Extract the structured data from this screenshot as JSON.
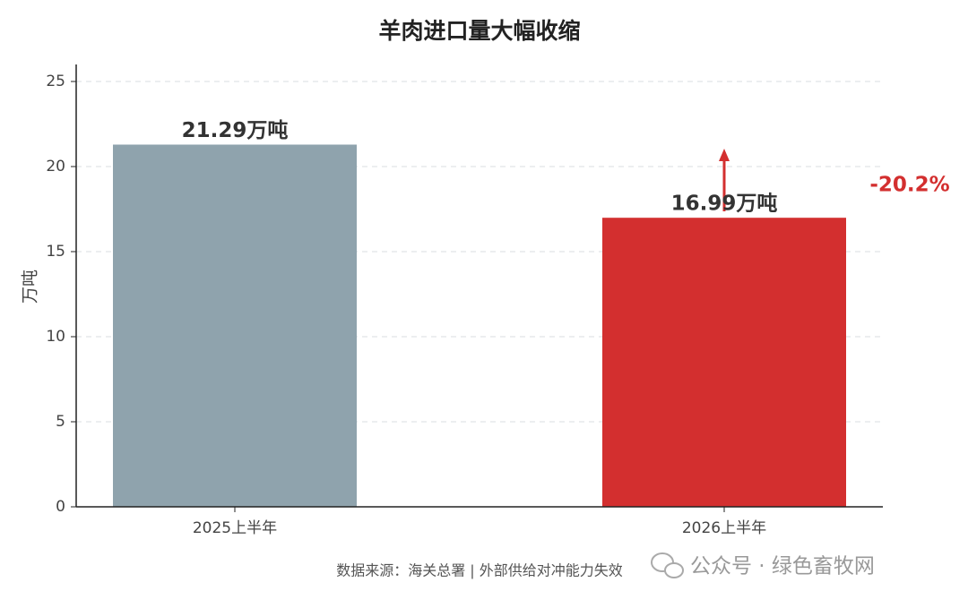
{
  "chart_data": {
    "type": "bar",
    "title": "羊肉进口量大幅收缩",
    "categories": [
      "2025上半年",
      "2026上半年"
    ],
    "values": [
      21.29,
      16.99
    ],
    "value_labels": [
      "21.29万吨",
      "16.99万吨"
    ],
    "colors": [
      "#8fa3ad",
      "#d32f2f"
    ],
    "y_label": "万吨",
    "ylim": [
      0,
      26
    ],
    "yticks": [
      0,
      5,
      10,
      15,
      20,
      25
    ],
    "grid": true,
    "annotation": "-20.2%",
    "source": "数据来源：海关总署 | 外部供给对冲能力失效",
    "watermark": "公众号 · 绿色畜牧网"
  }
}
